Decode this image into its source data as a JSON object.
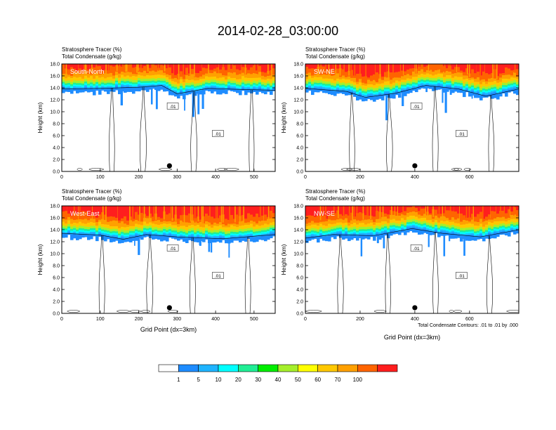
{
  "figure": {
    "title": "2014-02-28_03:00:00",
    "contour_note": "Total Condensate Contours: .01 to .01 by .000",
    "contour_label": ".01"
  },
  "colorbar": {
    "levels": [
      1,
      5,
      10,
      20,
      30,
      40,
      50,
      60,
      70,
      100
    ],
    "colors": [
      "#ffffff",
      "#1e8cff",
      "#1fb4ff",
      "#00ffff",
      "#20ee95",
      "#00ee00",
      "#a5ef2b",
      "#ffff00",
      "#ffc800",
      "#ffa000",
      "#ff6400",
      "#ff1e1e"
    ]
  },
  "chart_data": [
    {
      "type": "heatmap",
      "label": "South-North",
      "title_lines": [
        "Stratosphere Tracer   (%)",
        "Total Condensate   (g/kg)"
      ],
      "xlabel": "",
      "ylabel": "Height (km)",
      "xlim": [
        0,
        555
      ],
      "ylim": [
        0,
        18
      ],
      "xticks": [
        "0",
        "100",
        "200",
        "300",
        "400",
        "500"
      ],
      "yticks": [
        "0.0",
        "2.0",
        "4.0",
        "6.0",
        "8.0",
        "10.0",
        "12.0",
        "14.0",
        "16.0",
        "18.0"
      ],
      "marker_x": 280,
      "tropopause_km": [
        [
          0,
          14.2
        ],
        [
          100,
          14.3
        ],
        [
          200,
          14.5
        ],
        [
          260,
          14.8
        ],
        [
          300,
          13.4
        ],
        [
          380,
          14.3
        ],
        [
          480,
          14.1
        ],
        [
          555,
          14.0
        ]
      ]
    },
    {
      "type": "heatmap",
      "label": "SW-NE",
      "title_lines": [
        "Stratosphere Tracer   (%)",
        "Total Condensate   (g/kg)"
      ],
      "xlabel": "",
      "ylabel": "Height (km)",
      "xlim": [
        0,
        780
      ],
      "ylim": [
        0,
        18
      ],
      "xticks": [
        "0",
        "200",
        "400",
        "600"
      ],
      "yticks": [
        "0.0",
        "2.0",
        "4.0",
        "6.0",
        "8.0",
        "10.0",
        "12.0",
        "14.0",
        "16.0",
        "18.0"
      ],
      "marker_x": 400,
      "tropopause_km": [
        [
          0,
          14.3
        ],
        [
          150,
          13.8
        ],
        [
          220,
          12.8
        ],
        [
          330,
          13.5
        ],
        [
          440,
          14.8
        ],
        [
          560,
          14.2
        ],
        [
          660,
          13.0
        ],
        [
          780,
          14.2
        ]
      ]
    },
    {
      "type": "heatmap",
      "label": "West-East",
      "title_lines": [
        "Stratosphere Tracer   (%)",
        "Total Condensate   (g/kg)"
      ],
      "xlabel": "Grid Point (dx=3km)",
      "ylabel": "Height (km)",
      "xlim": [
        0,
        555
      ],
      "ylim": [
        0,
        18
      ],
      "xticks": [
        "0",
        "100",
        "200",
        "300",
        "400",
        "500"
      ],
      "yticks": [
        "0.0",
        "2.0",
        "4.0",
        "6.0",
        "8.0",
        "10.0",
        "12.0",
        "14.0",
        "16.0",
        "18.0"
      ],
      "marker_x": 280,
      "tropopause_km": [
        [
          0,
          13.8
        ],
        [
          100,
          13.5
        ],
        [
          160,
          12.8
        ],
        [
          220,
          13.6
        ],
        [
          300,
          13.2
        ],
        [
          420,
          12.9
        ],
        [
          555,
          13.6
        ]
      ]
    },
    {
      "type": "heatmap",
      "label": "NW-SE",
      "title_lines": [
        "Stratosphere Tracer   (%)",
        "Total Condensate   (g/kg)"
      ],
      "xlabel": "Grid Point (dx=3km)",
      "ylabel": "Height (km)",
      "xlim": [
        0,
        780
      ],
      "ylim": [
        0,
        18
      ],
      "xticks": [
        "0",
        "200",
        "400",
        "600"
      ],
      "yticks": [
        "0.0",
        "2.0",
        "4.0",
        "6.0",
        "8.0",
        "10.0",
        "12.0",
        "14.0",
        "16.0",
        "18.0"
      ],
      "marker_x": 400,
      "tropopause_km": [
        [
          0,
          13.0
        ],
        [
          100,
          13.6
        ],
        [
          250,
          13.4
        ],
        [
          390,
          14.6
        ],
        [
          500,
          13.8
        ],
        [
          640,
          13.2
        ],
        [
          780,
          14.4
        ]
      ]
    }
  ]
}
